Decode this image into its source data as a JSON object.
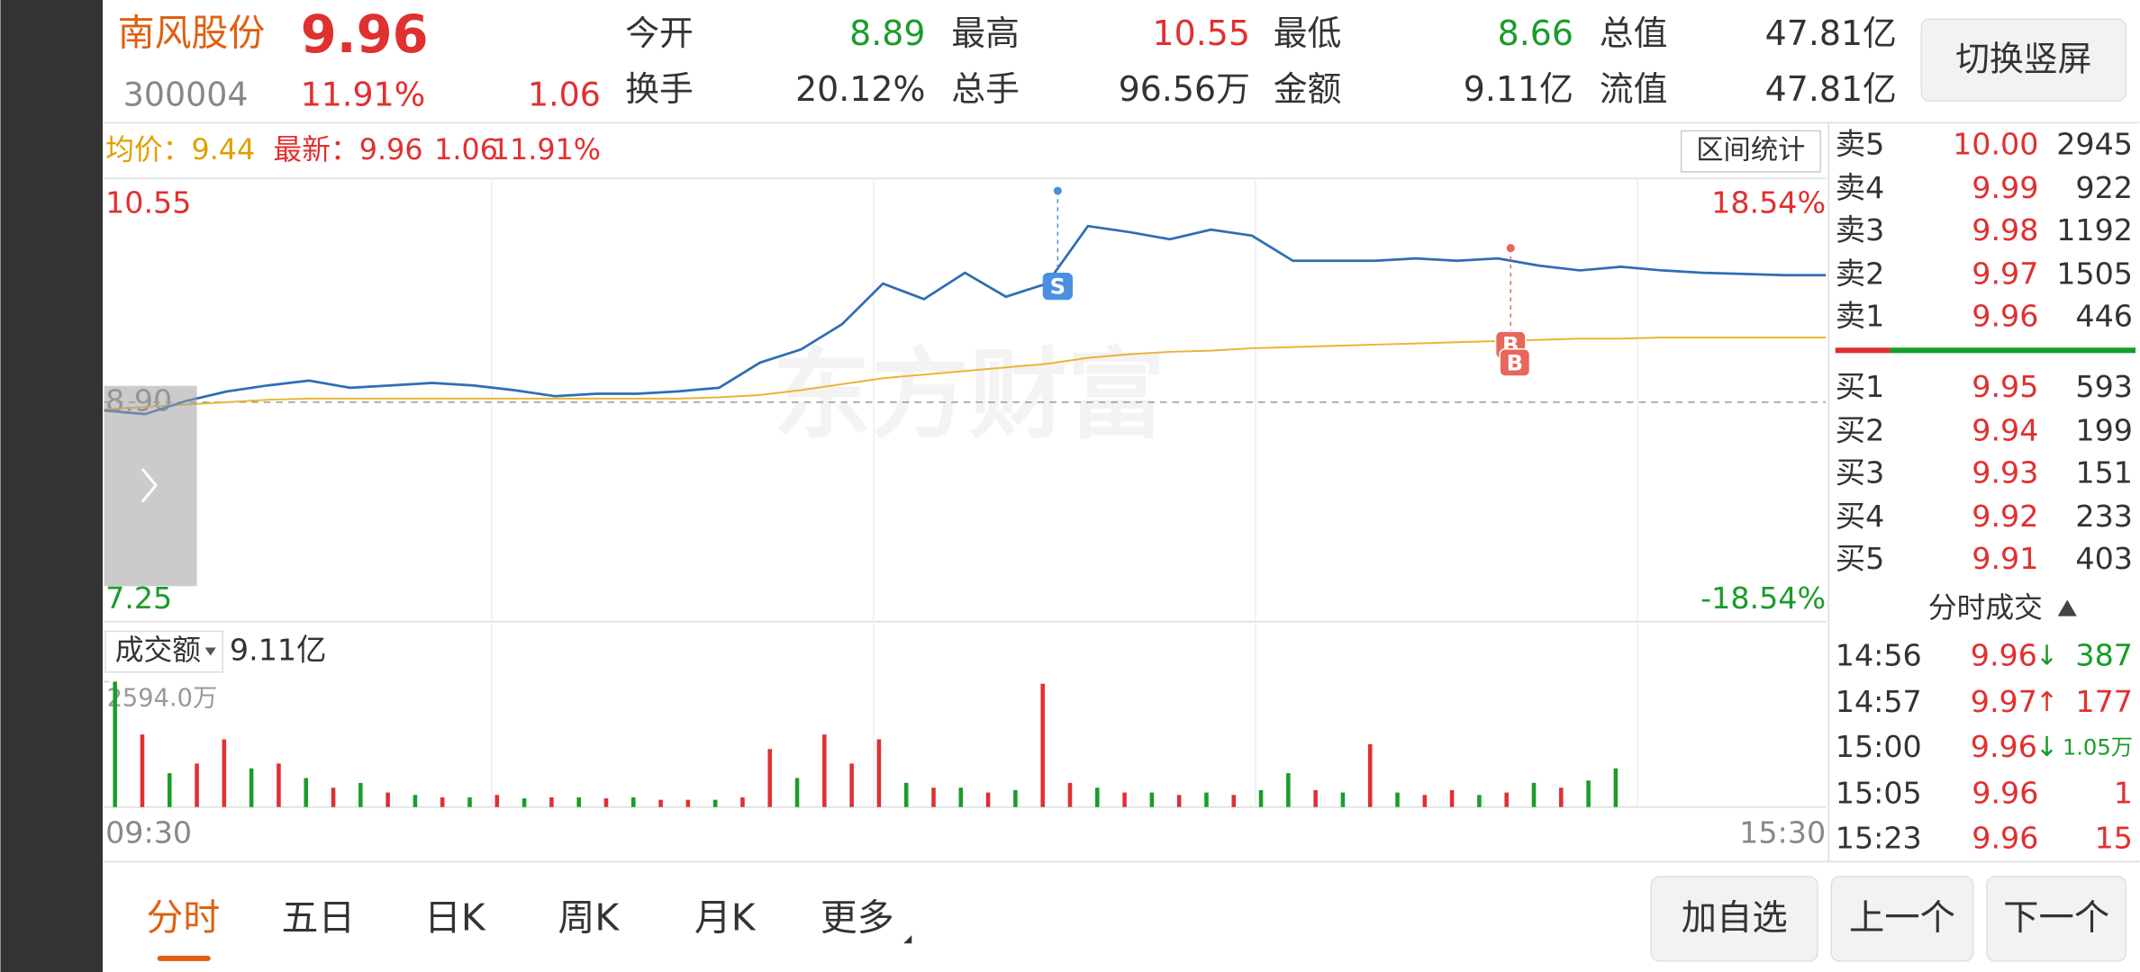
{
  "header": {
    "name": "南风股份",
    "price": "9.96",
    "code": "300004",
    "change_pct": "11.91%",
    "change": "1.06",
    "stats": [
      {
        "label": "今开",
        "value": "8.89"
      },
      {
        "label": "最高",
        "value": "10.55"
      },
      {
        "label": "最低",
        "value": "8.66"
      },
      {
        "label": "总值",
        "value": "47.81亿"
      },
      {
        "label": "换手",
        "value": "20.12%"
      },
      {
        "label": "总手",
        "value": "96.56万"
      },
      {
        "label": "金额",
        "value": "9.11亿"
      },
      {
        "label": "流值",
        "value": "47.81亿"
      }
    ],
    "rotate_button": "切换竖屏"
  },
  "chart_data": [
    {
      "type": "line",
      "avg_label": "均价：9.44",
      "latest_label": "最新：9.96",
      "latest_change": "1.06",
      "latest_pct": "11.91%",
      "range_button": "区间统计",
      "watermark": "东方财富",
      "ylim": [
        7.25,
        10.55
      ],
      "yticks": [
        10.55,
        {
          "value": 8.9,
          "label": "8.90"
        },
        7.25
      ],
      "y2lim": [
        -18.54,
        18.54
      ],
      "y2ticks": [
        {
          "value": 18.54,
          "label": "18.54%"
        },
        {
          "value": -18.54,
          "label": "-18.54%"
        }
      ],
      "markers": [
        "S",
        "B",
        "B"
      ],
      "series": [
        {
          "color": "#2f6db5",
          "values": [
            8.83,
            8.8,
            8.91,
            8.99,
            9.04,
            9.08,
            9.02,
            9.04,
            9.06,
            9.04,
            9.0,
            8.95,
            8.97,
            8.97,
            8.99,
            9.02,
            9.23,
            9.34,
            9.55,
            9.89,
            9.76,
            9.98,
            9.78,
            9.89,
            10.37,
            10.32,
            10.26,
            10.34,
            10.29,
            10.08,
            10.08,
            10.08,
            10.1,
            10.08,
            10.1,
            10.04,
            10.0,
            10.03,
            10.0,
            9.98,
            9.97,
            9.96,
            9.96
          ]
        },
        {
          "color": "#eab536",
          "values": [
            8.84,
            8.86,
            8.88,
            8.9,
            8.92,
            8.93,
            8.93,
            8.93,
            8.93,
            8.93,
            8.93,
            8.93,
            8.93,
            8.93,
            8.93,
            8.94,
            8.96,
            9.0,
            9.05,
            9.1,
            9.13,
            9.16,
            9.19,
            9.22,
            9.27,
            9.3,
            9.32,
            9.33,
            9.35,
            9.36,
            9.37,
            9.38,
            9.39,
            9.4,
            9.41,
            9.42,
            9.43,
            9.43,
            9.44,
            9.44,
            9.44,
            9.44,
            9.44
          ]
        }
      ]
    },
    {
      "type": "bar",
      "label": "成交额",
      "total": "9.11亿",
      "ylim": [
        0,
        2594
      ],
      "yticks": [
        {
          "value": 2594,
          "label": "2594.0万"
        }
      ],
      "x_labels": [
        "09:30",
        "15:30"
      ],
      "values": [
        2594,
        1500,
        700,
        900,
        1400,
        800,
        900,
        600,
        400,
        500,
        300,
        250,
        200,
        200,
        250,
        180,
        200,
        200,
        180,
        200,
        150,
        150,
        150,
        200,
        1200,
        600,
        1500,
        900,
        1400,
        500,
        400,
        400,
        300,
        350,
        2550,
        500,
        400,
        300,
        300,
        250,
        300,
        250,
        350,
        700,
        350,
        300,
        1300,
        300,
        250,
        350,
        250,
        300,
        500,
        400,
        550,
        800
      ],
      "colors": [
        "#1a9c2a",
        "#e03030",
        "#1a9c2a",
        "#e03030",
        "#e03030",
        "#1a9c2a",
        "#e03030",
        "#1a9c2a",
        "#e03030",
        "#1a9c2a",
        "#e03030",
        "#1a9c2a",
        "#e03030",
        "#1a9c2a",
        "#e03030",
        "#1a9c2a",
        "#e03030",
        "#1a9c2a",
        "#e03030",
        "#1a9c2a",
        "#e03030",
        "#e03030",
        "#1a9c2a",
        "#e03030",
        "#e03030",
        "#1a9c2a",
        "#e03030",
        "#e03030",
        "#e03030",
        "#1a9c2a",
        "#e03030",
        "#1a9c2a",
        "#e03030",
        "#1a9c2a",
        "#e03030",
        "#e03030",
        "#1a9c2a",
        "#e03030",
        "#1a9c2a",
        "#e03030",
        "#1a9c2a",
        "#e03030",
        "#1a9c2a",
        "#1a9c2a",
        "#e03030",
        "#1a9c2a",
        "#e03030",
        "#1a9c2a",
        "#e03030",
        "#e03030",
        "#1a9c2a",
        "#e03030",
        "#1a9c2a",
        "#e03030",
        "#1a9c2a",
        "#1a9c2a"
      ]
    }
  ],
  "order_book": {
    "asks": [
      {
        "label": "卖5",
        "price": "10.00",
        "volume": "2945"
      },
      {
        "label": "卖4",
        "price": "9.99",
        "volume": "922"
      },
      {
        "label": "卖3",
        "price": "9.98",
        "volume": "1192"
      },
      {
        "label": "卖2",
        "price": "9.97",
        "volume": "1505"
      },
      {
        "label": "卖1",
        "price": "9.96",
        "volume": "446"
      }
    ],
    "bids": [
      {
        "label": "买1",
        "price": "9.95",
        "volume": "593"
      },
      {
        "label": "买2",
        "price": "9.94",
        "volume": "199"
      },
      {
        "label": "买3",
        "price": "9.93",
        "volume": "151"
      },
      {
        "label": "买4",
        "price": "9.92",
        "volume": "233"
      },
      {
        "label": "买5",
        "price": "9.91",
        "volume": "403"
      }
    ]
  },
  "trades": {
    "title": "分时成交",
    "rows": [
      {
        "time": "14:56",
        "price": "9.96",
        "arrow": "↓",
        "volume": "387"
      },
      {
        "time": "14:57",
        "price": "9.97",
        "arrow": "↑",
        "volume": "177"
      },
      {
        "time": "15:00",
        "price": "9.96",
        "arrow": "↓",
        "volume": "1.05万"
      },
      {
        "time": "15:05",
        "price": "9.96",
        "arrow": "",
        "volume": "1"
      },
      {
        "time": "15:23",
        "price": "9.96",
        "arrow": "",
        "volume": "15"
      }
    ]
  },
  "tabs": [
    "分时",
    "五日",
    "日K",
    "周K",
    "月K",
    "更多"
  ],
  "buttons": [
    "加自选",
    "上一个",
    "下一个"
  ]
}
